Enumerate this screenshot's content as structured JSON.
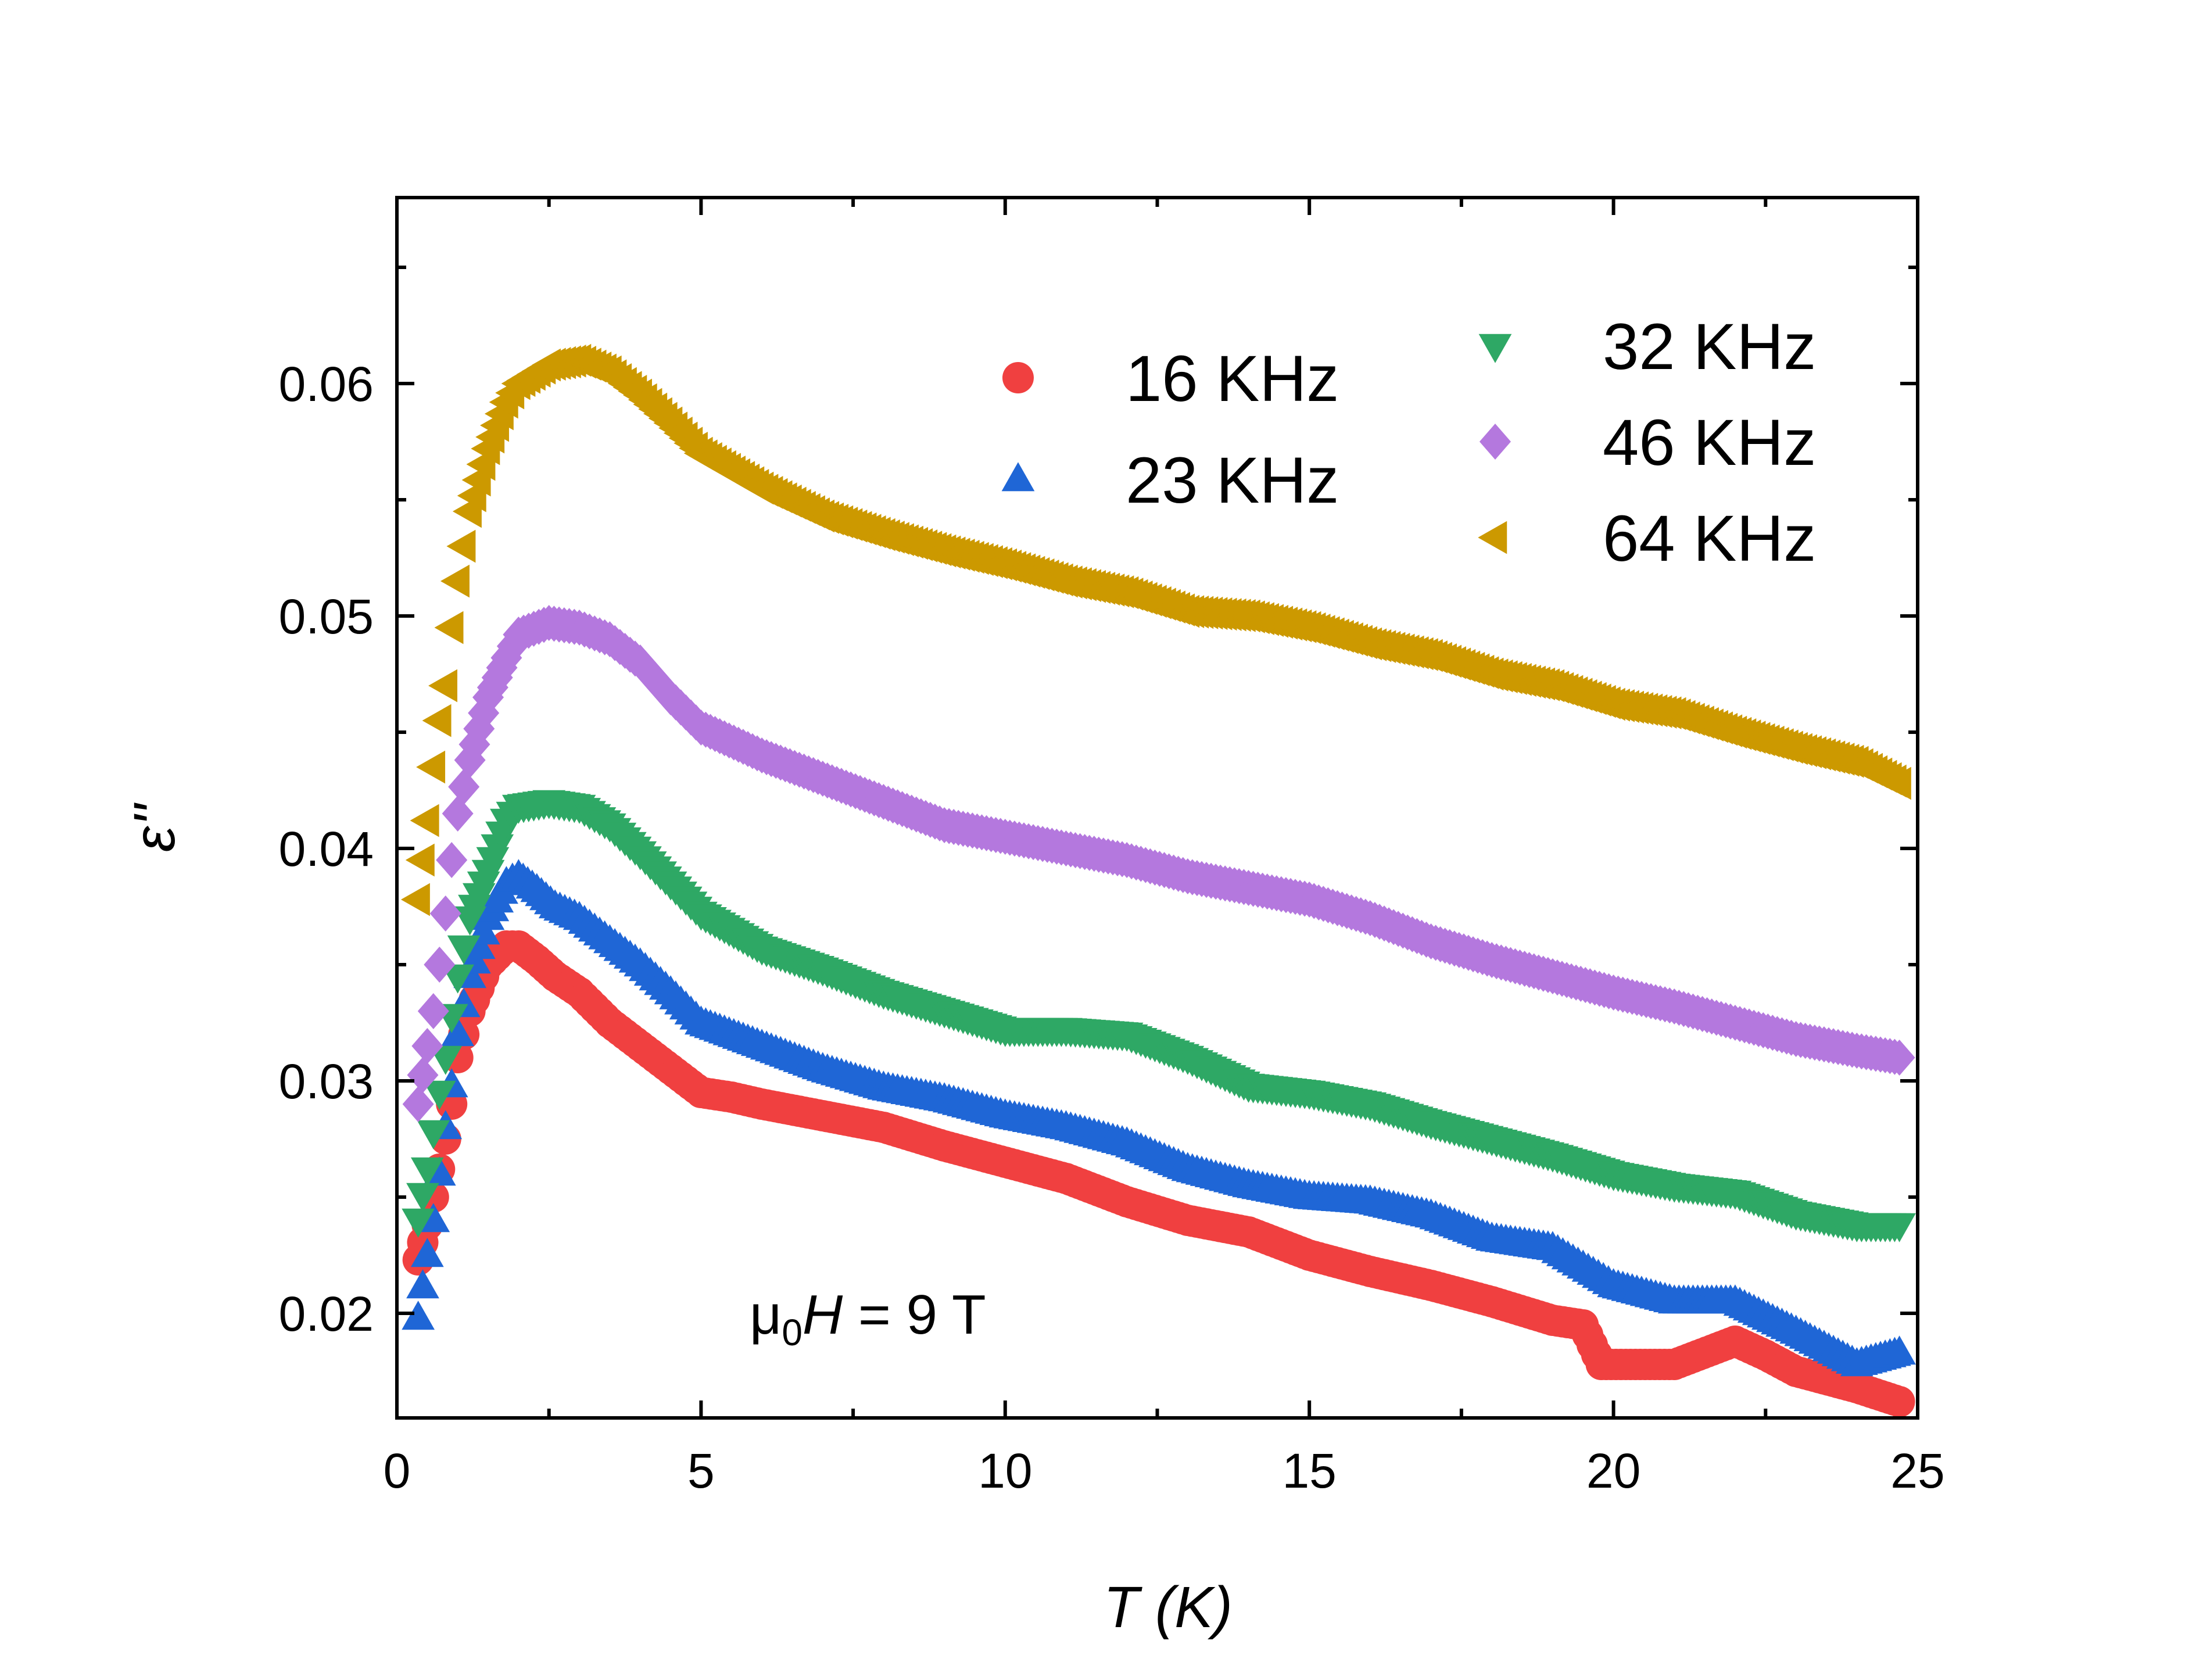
{
  "chart_data": {
    "type": "scatter",
    "title": "",
    "xlabel": "T (K)",
    "ylabel": "ε''",
    "xlim": [
      0,
      25
    ],
    "ylim": [
      0.0155,
      0.068
    ],
    "x_ticks": [
      0,
      5,
      10,
      15,
      20,
      25
    ],
    "y_ticks": [
      0.02,
      0.03,
      0.04,
      0.05,
      0.06
    ],
    "x_tick_labels": [
      "0",
      "5",
      "10",
      "15",
      "20",
      "25"
    ],
    "y_tick_labels": [
      "0.02",
      "0.03",
      "0.04",
      "0.05",
      "0.06"
    ],
    "grid": false,
    "legend_position": "top-right",
    "annotation": {
      "mu": "μ",
      "sub": "0",
      "var": "H",
      "rest": " = 9 T"
    },
    "series": [
      {
        "name": "16 KHz",
        "color": "#f04040",
        "marker": "circle",
        "points": [
          [
            0.35,
            0.0223
          ],
          [
            0.5,
            0.0238
          ],
          [
            0.6,
            0.025
          ],
          [
            0.7,
            0.0262
          ],
          [
            0.8,
            0.0275
          ],
          [
            0.9,
            0.029
          ],
          [
            1.0,
            0.031
          ],
          [
            1.2,
            0.033
          ],
          [
            1.5,
            0.035
          ],
          [
            1.8,
            0.0358
          ],
          [
            2.0,
            0.0358
          ],
          [
            2.3,
            0.0352
          ],
          [
            2.6,
            0.0345
          ],
          [
            3.0,
            0.0338
          ],
          [
            3.5,
            0.0325
          ],
          [
            4.0,
            0.0315
          ],
          [
            4.5,
            0.0305
          ],
          [
            5.0,
            0.0295
          ],
          [
            5.5,
            0.0293
          ],
          [
            6.0,
            0.029
          ],
          [
            7.0,
            0.0285
          ],
          [
            8.0,
            0.028
          ],
          [
            9.0,
            0.0272
          ],
          [
            10.0,
            0.0265
          ],
          [
            11.0,
            0.0258
          ],
          [
            12.0,
            0.0248
          ],
          [
            13.0,
            0.024
          ],
          [
            14.0,
            0.0235
          ],
          [
            15.0,
            0.0225
          ],
          [
            16.0,
            0.0218
          ],
          [
            17.0,
            0.0212
          ],
          [
            18.0,
            0.0205
          ],
          [
            19.0,
            0.0197
          ],
          [
            19.5,
            0.0195
          ],
          [
            19.8,
            0.0178
          ],
          [
            21.0,
            0.0178
          ],
          [
            22.0,
            0.0188
          ],
          [
            22.5,
            0.0182
          ],
          [
            23.0,
            0.0175
          ],
          [
            24.0,
            0.0168
          ],
          [
            24.7,
            0.0162
          ]
        ]
      },
      {
        "name": "23 KHz",
        "color": "#1f66d6",
        "marker": "triangle-up",
        "points": [
          [
            0.35,
            0.0198
          ],
          [
            0.5,
            0.0225
          ],
          [
            0.6,
            0.024
          ],
          [
            0.7,
            0.026
          ],
          [
            0.8,
            0.028
          ],
          [
            0.9,
            0.0298
          ],
          [
            1.0,
            0.032
          ],
          [
            1.2,
            0.0345
          ],
          [
            1.5,
            0.037
          ],
          [
            1.8,
            0.0385
          ],
          [
            2.0,
            0.0388
          ],
          [
            2.3,
            0.0382
          ],
          [
            2.6,
            0.0375
          ],
          [
            3.0,
            0.037
          ],
          [
            3.5,
            0.036
          ],
          [
            4.0,
            0.035
          ],
          [
            4.5,
            0.0338
          ],
          [
            5.0,
            0.0325
          ],
          [
            6.0,
            0.0315
          ],
          [
            7.0,
            0.0305
          ],
          [
            8.0,
            0.0297
          ],
          [
            9.0,
            0.0292
          ],
          [
            10.0,
            0.0285
          ],
          [
            11.0,
            0.028
          ],
          [
            12.0,
            0.0273
          ],
          [
            13.0,
            0.0262
          ],
          [
            14.0,
            0.0255
          ],
          [
            15.0,
            0.025
          ],
          [
            16.0,
            0.0248
          ],
          [
            17.0,
            0.0242
          ],
          [
            18.0,
            0.0232
          ],
          [
            19.0,
            0.0228
          ],
          [
            19.5,
            0.022
          ],
          [
            20.0,
            0.0212
          ],
          [
            21.0,
            0.0205
          ],
          [
            22.0,
            0.0205
          ],
          [
            23.0,
            0.0192
          ],
          [
            24.0,
            0.0178
          ],
          [
            24.7,
            0.0183
          ]
        ]
      },
      {
        "name": "32 KHz",
        "color": "#2ea865",
        "marker": "triangle-down",
        "points": [
          [
            0.35,
            0.024
          ],
          [
            0.5,
            0.0262
          ],
          [
            0.6,
            0.0278
          ],
          [
            0.7,
            0.0295
          ],
          [
            0.8,
            0.031
          ],
          [
            0.9,
            0.0328
          ],
          [
            1.0,
            0.0345
          ],
          [
            1.2,
            0.037
          ],
          [
            1.5,
            0.039
          ],
          [
            1.8,
            0.0412
          ],
          [
            2.0,
            0.0418
          ],
          [
            2.5,
            0.042
          ],
          [
            3.0,
            0.0418
          ],
          [
            3.5,
            0.041
          ],
          [
            4.0,
            0.0398
          ],
          [
            4.5,
            0.0385
          ],
          [
            5.0,
            0.0372
          ],
          [
            6.0,
            0.0357
          ],
          [
            7.0,
            0.0348
          ],
          [
            8.0,
            0.0338
          ],
          [
            9.0,
            0.033
          ],
          [
            10.0,
            0.0322
          ],
          [
            11.0,
            0.0322
          ],
          [
            12.0,
            0.032
          ],
          [
            13.0,
            0.031
          ],
          [
            14.0,
            0.0298
          ],
          [
            15.0,
            0.0295
          ],
          [
            16.0,
            0.029
          ],
          [
            17.0,
            0.0282
          ],
          [
            18.0,
            0.0275
          ],
          [
            19.0,
            0.0268
          ],
          [
            20.0,
            0.026
          ],
          [
            21.0,
            0.0255
          ],
          [
            22.0,
            0.0252
          ],
          [
            23.0,
            0.0243
          ],
          [
            24.0,
            0.0238
          ],
          [
            24.7,
            0.0238
          ]
        ]
      },
      {
        "name": "46 KHz",
        "color": "#b478de",
        "marker": "diamond",
        "points": [
          [
            0.35,
            0.029
          ],
          [
            0.5,
            0.0315
          ],
          [
            0.6,
            0.033
          ],
          [
            0.7,
            0.035
          ],
          [
            0.8,
            0.0372
          ],
          [
            0.9,
            0.0395
          ],
          [
            1.0,
            0.0415
          ],
          [
            1.2,
            0.0438
          ],
          [
            1.5,
            0.0465
          ],
          [
            1.8,
            0.0482
          ],
          [
            2.0,
            0.0492
          ],
          [
            2.5,
            0.0497
          ],
          [
            3.0,
            0.0495
          ],
          [
            3.5,
            0.049
          ],
          [
            4.0,
            0.048
          ],
          [
            4.5,
            0.0465
          ],
          [
            5.0,
            0.0452
          ],
          [
            6.0,
            0.044
          ],
          [
            7.0,
            0.043
          ],
          [
            8.0,
            0.042
          ],
          [
            9.0,
            0.041
          ],
          [
            10.0,
            0.0405
          ],
          [
            11.0,
            0.04
          ],
          [
            12.0,
            0.0395
          ],
          [
            13.0,
            0.0388
          ],
          [
            14.0,
            0.0383
          ],
          [
            15.0,
            0.0378
          ],
          [
            16.0,
            0.037
          ],
          [
            17.0,
            0.036
          ],
          [
            18.0,
            0.0352
          ],
          [
            19.0,
            0.0345
          ],
          [
            20.0,
            0.0338
          ],
          [
            21.0,
            0.0332
          ],
          [
            22.0,
            0.0325
          ],
          [
            23.0,
            0.0318
          ],
          [
            24.0,
            0.0313
          ],
          [
            24.7,
            0.031
          ]
        ]
      },
      {
        "name": "64 KHz",
        "color": "#cc9900",
        "marker": "triangle-left",
        "points": [
          [
            0.35,
            0.0378
          ],
          [
            0.5,
            0.0412
          ],
          [
            0.6,
            0.0435
          ],
          [
            0.7,
            0.0455
          ],
          [
            0.8,
            0.047
          ],
          [
            0.9,
            0.0495
          ],
          [
            1.0,
            0.0515
          ],
          [
            1.2,
            0.0545
          ],
          [
            1.5,
            0.0572
          ],
          [
            1.8,
            0.0592
          ],
          [
            2.0,
            0.06
          ],
          [
            2.5,
            0.0608
          ],
          [
            3.0,
            0.061
          ],
          [
            3.5,
            0.0605
          ],
          [
            4.0,
            0.0595
          ],
          [
            4.5,
            0.0583
          ],
          [
            5.0,
            0.057
          ],
          [
            6.0,
            0.0555
          ],
          [
            7.0,
            0.0543
          ],
          [
            8.0,
            0.0535
          ],
          [
            9.0,
            0.0528
          ],
          [
            10.0,
            0.0522
          ],
          [
            11.0,
            0.0515
          ],
          [
            12.0,
            0.051
          ],
          [
            13.0,
            0.0502
          ],
          [
            14.0,
            0.05
          ],
          [
            15.0,
            0.0495
          ],
          [
            16.0,
            0.0488
          ],
          [
            17.0,
            0.0483
          ],
          [
            18.0,
            0.0475
          ],
          [
            19.0,
            0.047
          ],
          [
            20.0,
            0.0462
          ],
          [
            21.0,
            0.0458
          ],
          [
            22.0,
            0.045
          ],
          [
            23.0,
            0.0443
          ],
          [
            24.0,
            0.0437
          ],
          [
            24.7,
            0.0428
          ]
        ]
      }
    ]
  }
}
